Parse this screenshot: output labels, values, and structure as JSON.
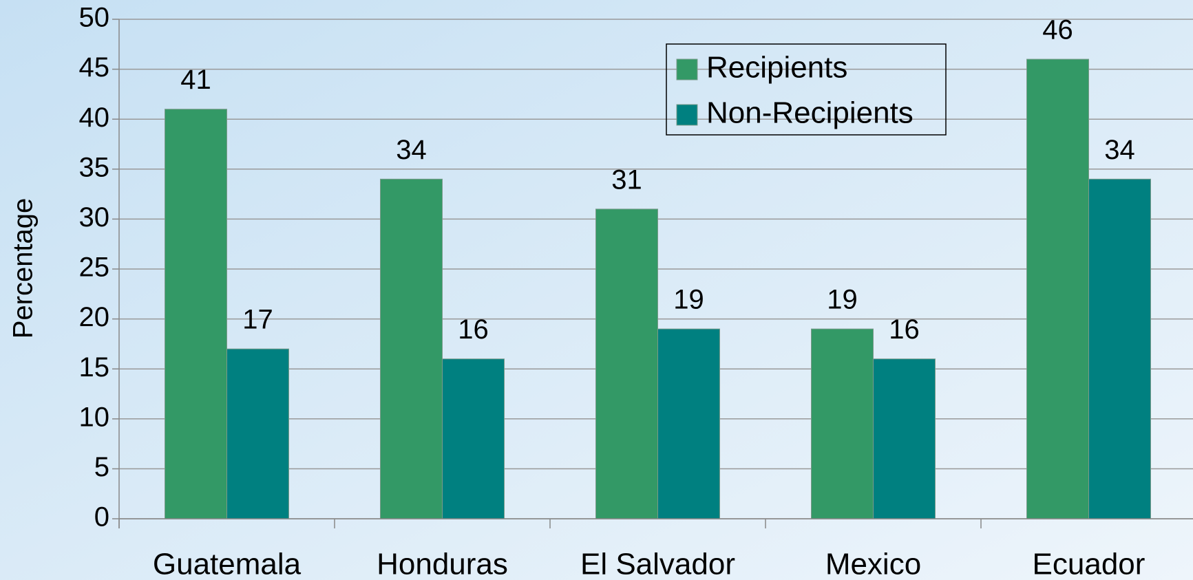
{
  "chart_data": {
    "type": "bar",
    "y_label": "Percentage",
    "categories": [
      "Guatemala",
      "Honduras",
      "El Salvador",
      "Mexico",
      "Ecuador"
    ],
    "series": [
      {
        "name": "Recipients",
        "color": "#339966",
        "values": [
          41,
          34,
          31,
          19,
          46
        ]
      },
      {
        "name": "Non-Recipients",
        "color": "#008080",
        "values": [
          17,
          16,
          19,
          16,
          34
        ]
      }
    ],
    "ylim": [
      0,
      50
    ],
    "yticks": [
      0,
      5,
      10,
      15,
      20,
      25,
      30,
      35,
      40,
      45,
      50
    ],
    "grid": true,
    "legend": "upper right"
  }
}
